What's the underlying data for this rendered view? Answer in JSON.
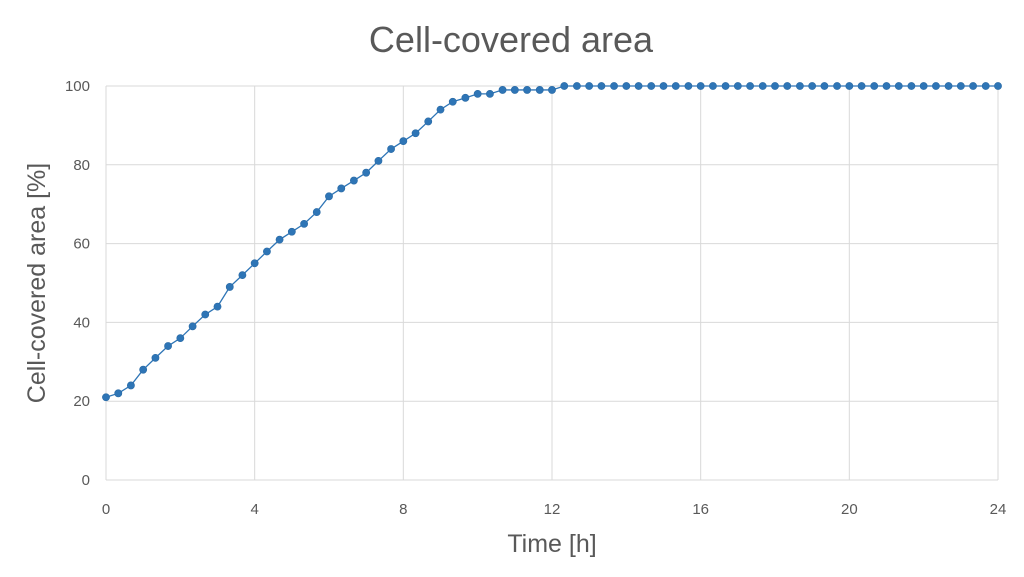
{
  "colors": {
    "series": "#2e75b6",
    "line": "#2e75b6",
    "grid": "#d9d9d9",
    "text": "#595959"
  },
  "chart_data": {
    "type": "line",
    "title": "Cell-covered area",
    "xlabel": "Time [h]",
    "ylabel": "Cell-covered area [%]",
    "xlim": [
      0,
      24
    ],
    "ylim": [
      0,
      100
    ],
    "xticks": [
      0,
      4,
      8,
      12,
      16,
      20,
      24
    ],
    "yticks": [
      0,
      20,
      40,
      60,
      80,
      100
    ],
    "grid": true,
    "legend": "none",
    "series": [
      {
        "x": [
          0,
          0.33,
          0.67,
          1,
          1.33,
          1.67,
          2,
          2.33,
          2.67,
          3,
          3.33,
          3.67,
          4,
          4.33,
          4.67,
          5,
          5.33,
          5.67,
          6,
          6.33,
          6.67,
          7,
          7.33,
          7.67,
          8,
          8.33,
          8.67,
          9,
          9.33,
          9.67,
          10,
          10.33,
          10.67,
          11,
          11.33,
          11.67,
          12,
          12.33,
          12.67,
          13,
          13.33,
          13.67,
          14,
          14.33,
          14.67,
          15,
          15.33,
          15.67,
          16,
          16.33,
          16.67,
          17,
          17.33,
          17.67,
          18,
          18.33,
          18.67,
          19,
          19.33,
          19.67,
          20,
          20.33,
          20.67,
          21,
          21.33,
          21.67,
          22,
          22.33,
          22.67,
          23,
          23.33,
          23.67,
          24
        ],
        "y": [
          21,
          22,
          24,
          28,
          31,
          34,
          36,
          39,
          42,
          44,
          49,
          52,
          55,
          58,
          61,
          63,
          65,
          68,
          72,
          74,
          76,
          78,
          81,
          84,
          86,
          88,
          91,
          94,
          96,
          97,
          98,
          98,
          99,
          99,
          99,
          99,
          99,
          100,
          100,
          100,
          100,
          100,
          100,
          100,
          100,
          100,
          100,
          100,
          100,
          100,
          100,
          100,
          100,
          100,
          100,
          100,
          100,
          100,
          100,
          100,
          100,
          100,
          100,
          100,
          100,
          100,
          100,
          100,
          100,
          100,
          100,
          100,
          100
        ]
      }
    ]
  }
}
